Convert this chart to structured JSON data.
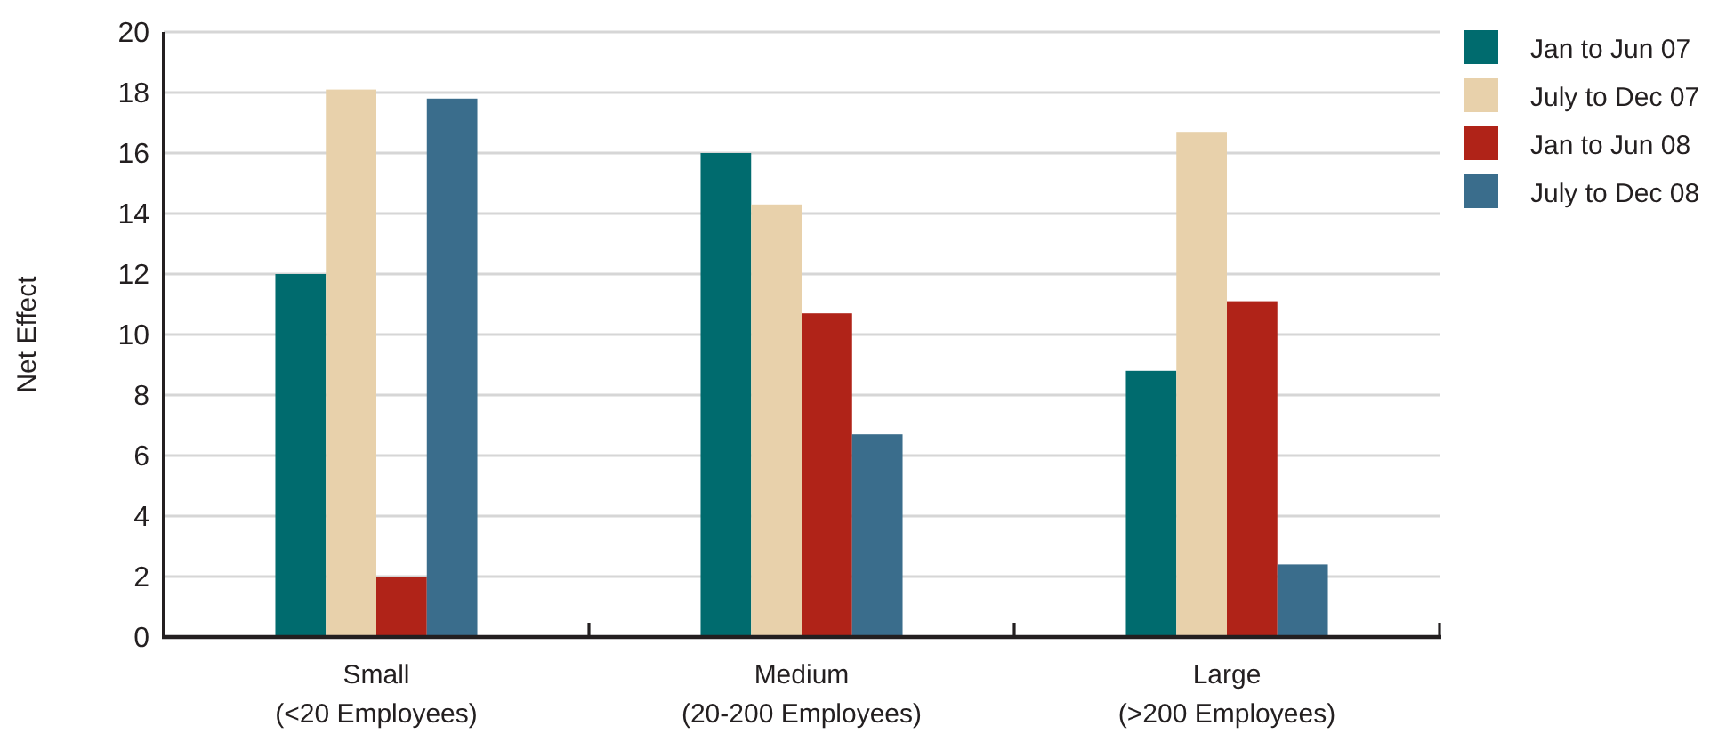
{
  "chart_data": {
    "type": "bar",
    "ylabel": "Net Effect",
    "categories": [
      "Small\n(<20 Employees)",
      "Medium\n(20-200 Employees)",
      "Large\n(>200 Employees)"
    ],
    "series": [
      {
        "name": "Jan to Jun 07",
        "color": "#006b6e",
        "values": [
          12,
          16,
          8.8
        ]
      },
      {
        "name": "July to Dec 07",
        "color": "#e8d1ab",
        "values": [
          18.1,
          14.3,
          16.7
        ]
      },
      {
        "name": "Jan to Jun 08",
        "color": "#b02318",
        "values": [
          2,
          10.7,
          11.1
        ]
      },
      {
        "name": "July to Dec 08",
        "color": "#3a6d8c",
        "values": [
          17.8,
          6.7,
          2.4
        ]
      }
    ],
    "ylim": [
      0,
      20
    ],
    "yticks": [
      0,
      2,
      4,
      6,
      8,
      10,
      12,
      14,
      16,
      18,
      20
    ],
    "grid": "y",
    "legend": "top right"
  }
}
